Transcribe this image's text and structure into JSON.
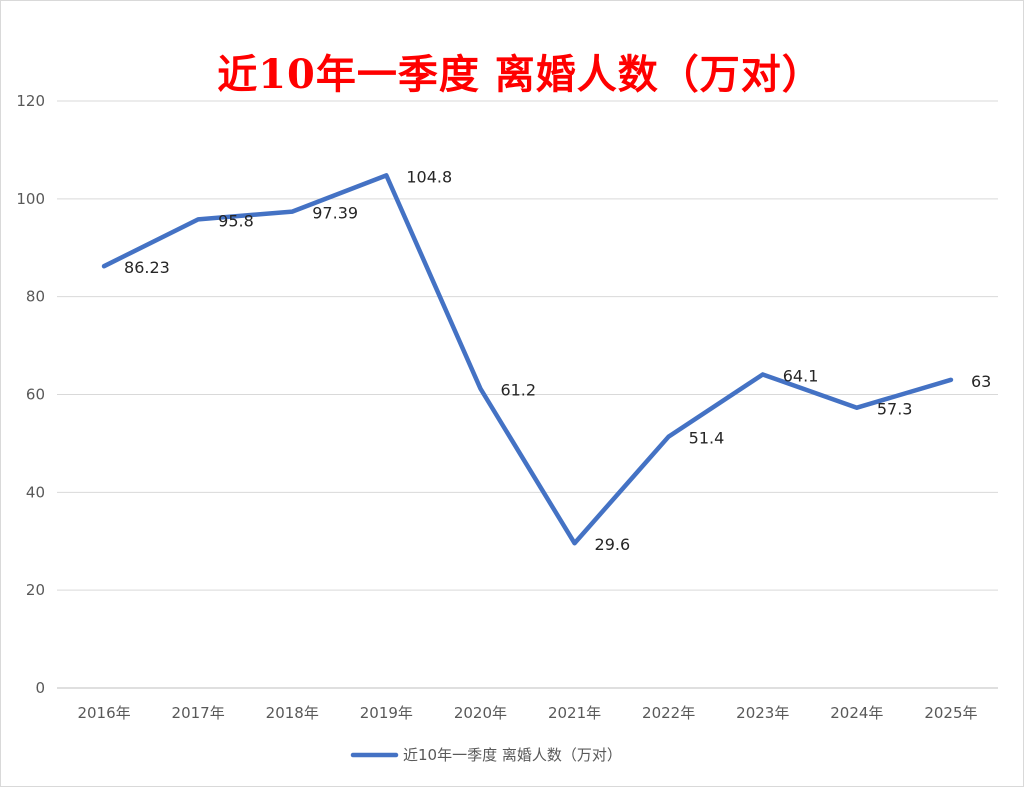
{
  "chart_data": {
    "type": "line",
    "title": "近10年一季度 离婚人数（万对）",
    "categories": [
      "2016年",
      "2017年",
      "2018年",
      "2019年",
      "2020年",
      "2021年",
      "2022年",
      "2023年",
      "2024年",
      "2025年"
    ],
    "series": [
      {
        "name": "近10年一季度 离婚人数（万对）",
        "values": [
          86.23,
          95.8,
          97.39,
          104.8,
          61.2,
          29.6,
          51.4,
          64.1,
          57.3,
          63
        ],
        "labels": [
          "86.23",
          "95.8",
          "97.39",
          "104.8",
          "61.2",
          "29.6",
          "51.4",
          "64.1",
          "57.3",
          "63"
        ],
        "color": "#4472c4"
      }
    ],
    "ylim": [
      0,
      120
    ],
    "yticks": [
      "0",
      "20",
      "40",
      "60",
      "80",
      "100",
      "120"
    ],
    "grid": true,
    "legend_position": "bottom",
    "title_color": "#ff0000"
  }
}
